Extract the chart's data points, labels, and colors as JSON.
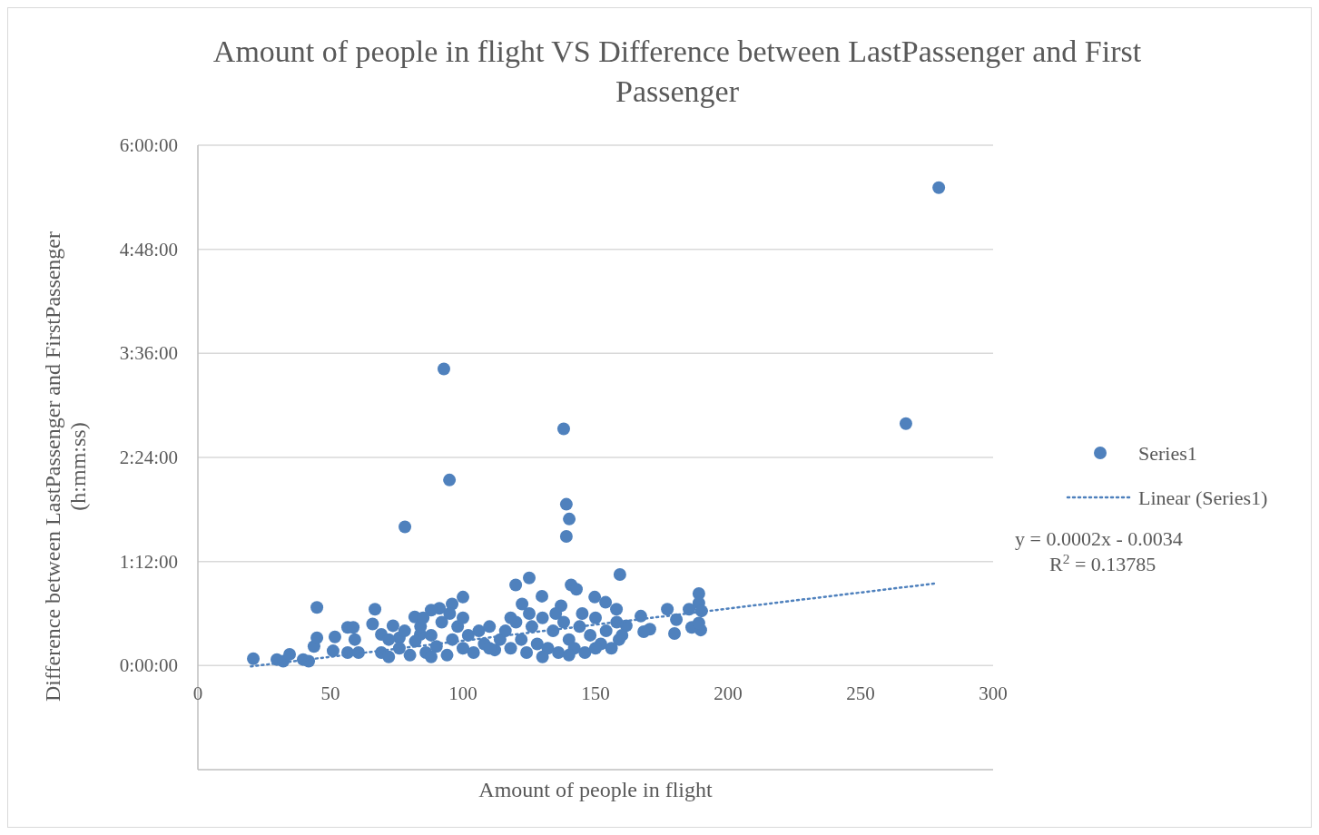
{
  "chart_data": {
    "type": "scatter",
    "title": "Amount of people in flight VS Difference between LastPassenger and First Passenger",
    "xlabel": "Amount of people in flight",
    "ylabel": "Difference between LastPassenger and FirstPassenger (h:mm:ss)",
    "xlim": [
      0,
      300
    ],
    "xticks": [
      0,
      50,
      100,
      150,
      200,
      250,
      300
    ],
    "ylim": [
      -1.2,
      6
    ],
    "yticks": [
      {
        "value": 0,
        "label": "0:00:00"
      },
      {
        "value": 1.2,
        "label": "1:12:00"
      },
      {
        "value": 2.4,
        "label": "2:24:00"
      },
      {
        "value": 3.6,
        "label": "3:36:00"
      },
      {
        "value": 4.8,
        "label": "4:48:00"
      },
      {
        "value": 6,
        "label": "6:00:00"
      }
    ],
    "grid": "y",
    "legend": "right",
    "annotations": [
      "y = 0.0002x - 0.0034",
      "R$^{2}$ = 0.13785"
    ],
    "series": [
      {
        "name": "Series1",
        "type": "scatter",
        "marker": "circle",
        "color": "#4f81bd",
        "x": [
          279.5,
          92.8,
          138,
          267.1,
          94.9,
          139,
          140.1,
          139,
          78.1,
          159.2,
          125,
          119.9,
          140.8,
          142.8,
          189,
          149.7,
          129.8,
          100,
          44.9,
          66.8,
          122.3,
          95.9,
          91.1,
          177.1,
          137,
          157.9,
          153.8,
          185.3,
          189,
          167.1,
          180.5,
          190,
          161.6,
          170.5,
          168.2,
          179.8,
          158.9,
          189.7,
          186.3,
          189,
          20.9,
          29.8,
          32.2,
          34.6,
          39.7,
          41.8,
          43.8,
          44.9,
          51.7,
          51,
          56.5,
          58.6,
          56.5,
          60.6,
          59.2,
          65.9,
          69.2,
          73.6,
          76,
          69.2,
          81.8,
          88,
          83.9,
          72,
          72,
          76,
          78,
          80,
          82,
          84,
          86,
          88,
          90,
          92,
          94,
          96,
          98,
          100,
          100,
          102,
          104,
          106,
          108,
          110,
          112,
          114,
          116,
          118,
          120,
          122,
          124,
          126,
          128,
          130,
          132,
          134,
          136,
          138,
          140,
          142,
          144,
          146,
          148,
          150,
          152,
          154,
          156,
          158,
          160,
          85,
          95,
          110,
          125,
          135,
          145,
          118,
          88,
          130,
          140,
          150
        ],
        "values": [
          5.51,
          3.42,
          2.73,
          2.79,
          2.14,
          1.86,
          1.69,
          1.49,
          1.6,
          1.05,
          1.01,
          0.93,
          0.93,
          0.88,
          0.83,
          0.79,
          0.8,
          0.79,
          0.67,
          0.65,
          0.71,
          0.71,
          0.66,
          0.65,
          0.69,
          0.65,
          0.73,
          0.65,
          0.72,
          0.57,
          0.53,
          0.63,
          0.46,
          0.42,
          0.39,
          0.37,
          0.3,
          0.41,
          0.44,
          0.49,
          0.08,
          0.07,
          0.05,
          0.13,
          0.07,
          0.05,
          0.22,
          0.32,
          0.33,
          0.17,
          0.44,
          0.44,
          0.15,
          0.15,
          0.3,
          0.48,
          0.15,
          0.46,
          0.32,
          0.36,
          0.56,
          0.64,
          0.36,
          0.1,
          0.3,
          0.2,
          0.4,
          0.12,
          0.28,
          0.45,
          0.15,
          0.35,
          0.22,
          0.5,
          0.12,
          0.3,
          0.45,
          0.2,
          0.55,
          0.35,
          0.15,
          0.4,
          0.25,
          0.45,
          0.18,
          0.3,
          0.4,
          0.2,
          0.5,
          0.3,
          0.15,
          0.45,
          0.25,
          0.55,
          0.2,
          0.4,
          0.15,
          0.5,
          0.3,
          0.2,
          0.45,
          0.15,
          0.35,
          0.55,
          0.25,
          0.4,
          0.2,
          0.5,
          0.35,
          0.55,
          0.6,
          0.2,
          0.6,
          0.6,
          0.6,
          0.55,
          0.1,
          0.1,
          0.12,
          0.2
        ]
      },
      {
        "name": "Linear (Series1)",
        "type": "line",
        "marker": "none",
        "line_style": "dotted",
        "color": "#4f81bd",
        "x": [
          20,
          279
        ],
        "values": [
          -0.01,
          0.95
        ]
      }
    ]
  }
}
